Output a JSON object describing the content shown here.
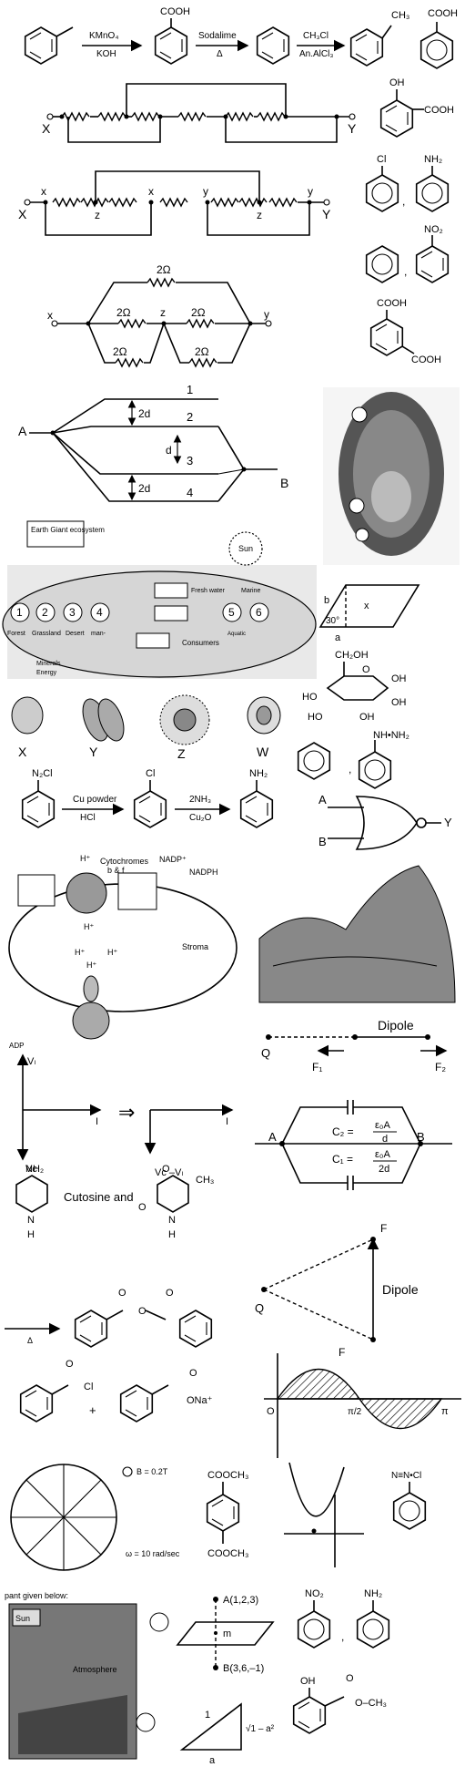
{
  "reactions": {
    "top_reagent_1": "KMnO₄",
    "bottom_reagent_1": "KOH",
    "cooh_label": "COOH",
    "top_reagent_2": "Sodalime",
    "bottom_reagent_2": "Δ",
    "top_reagent_3": "CH₃Cl",
    "bottom_reagent_3": "An.AlCl₃",
    "ch3_label": "CH₃",
    "cooh_label_right": "COOH",
    "diazo_label": "N₂Cl",
    "cu_top": "Cu powder",
    "cu_bottom": "HCl",
    "chloro_label": "Cl",
    "nh3_top": "2NH₃",
    "nh3_bottom": "Cu₂O",
    "amine_label": "NH₂",
    "delta_arrow": "Δ",
    "acid_chloride_cl": "Cl",
    "acid_chloride_o": "O",
    "plus_sign": "+",
    "sodium_salt_o": "O",
    "sodium_salt_ona": "ONa⁺",
    "anhydride_o1": "O",
    "anhydride_o2": "O",
    "anhydride_o3": "O"
  },
  "right_molecules": {
    "salicylic_oh": "OH",
    "salicylic_cooh": "COOH",
    "chloro": "Cl",
    "aniline": "NH₂",
    "comma_1": ",",
    "nitro": "NO₂",
    "comma_2": ",",
    "cooh_top": "COOH",
    "cooh_bottom": "COOH",
    "glucose_ch2oh": "CH₂OH",
    "glucose_o": "O",
    "glucose_oh_1": "OH",
    "glucose_oh_2": "HO",
    "glucose_oh_3": "OH",
    "glucose_ho": "HO",
    "glucose_oh_4": "OH",
    "hydrazine": "NH•NH₂",
    "comma_3": ",",
    "ester_top": "COOCH₃",
    "ester_bottom": "COOCH₃",
    "diazonium": "N≡N•Cl",
    "nitro_2": "NO₂",
    "aniline_2": "NH₂",
    "comma_4": ",",
    "salicylate_oh": "OH",
    "salicylate_o": "O",
    "salicylate_och3": "O–CH₃"
  },
  "circuits": {
    "x_label": "X",
    "y_label": "Y",
    "x_lower": "x",
    "z_lower": "z",
    "y_lower": "y",
    "ohm_2": "2Ω",
    "x2": "x",
    "y2": "y",
    "z2": "z"
  },
  "paths": {
    "a_label": "A",
    "b_label": "B",
    "one": "1",
    "two": "2",
    "three": "3",
    "four": "4",
    "two_d": "2d",
    "d": "d"
  },
  "ecosystem": {
    "earth_giant": "Earth Giant ecosystem",
    "sun": "Sun",
    "fresh_water": "Fresh water",
    "marine": "Marine",
    "aquatic": "Aquatic",
    "consumers": "Consumers",
    "minerals": "Minerals",
    "energy": "Energy",
    "n1": "1",
    "n2": "2",
    "n3": "3",
    "n4": "4",
    "n5": "5",
    "n6": "6",
    "forest": "Forest",
    "grassland": "Grassland",
    "desert": "Desert",
    "man_made": "man-"
  },
  "parallelogram": {
    "b": "b",
    "x": "x",
    "angle": "30°",
    "a": "a"
  },
  "cells": {
    "x": "X",
    "y": "Y",
    "z": "Z",
    "w": "W"
  },
  "gate": {
    "a": "A",
    "b": "B",
    "y": "Y"
  },
  "chloroplast": {
    "h_top": "H⁺",
    "cytochromes": "Cytochromes",
    "bf": "b & f",
    "nadp": "NADP⁺",
    "nadph": "NADPH",
    "h1": "H⁺",
    "h2": "H⁺",
    "h3": "H⁺",
    "h4": "H⁺",
    "stroma": "Stroma",
    "adp": "ADP"
  },
  "dipole_1": {
    "q": "Q",
    "dipole": "Dipole",
    "f1": "F₁",
    "f2": "F₂"
  },
  "phasor": {
    "vl": "Vₗ",
    "i1": "I",
    "vc": "Vᴄ",
    "arrow": "⇒",
    "i2": "I",
    "vc_vl": "Vᴄ –Vₗ"
  },
  "capacitors": {
    "a": "A",
    "b": "B",
    "c2": "C₂ =",
    "c2_num": "ε₀A",
    "c2_den": "d",
    "c1": "C₁ =",
    "c1_num": "ε₀A",
    "c1_den": "2d"
  },
  "bases": {
    "nh2": "NH₂",
    "nh": "N",
    "h1": "H",
    "text": "Cutosine and",
    "o1": "O",
    "o2": "O",
    "ch3": "CH₃",
    "n": "N",
    "h2": "H"
  },
  "dipole_2": {
    "f_top": "F",
    "q": "Q",
    "dipole": "Dipole",
    "f_bottom": "F"
  },
  "sine": {
    "o": "O",
    "pi2": "π/2",
    "pi": "π"
  },
  "wheel": {
    "b": "B = 0.2T",
    "omega": "ω = 10 rad/sec"
  },
  "plane": {
    "a": "A(1,2,3)",
    "m": "m",
    "b": "B(3,6,–1)"
  },
  "triangle": {
    "one": "1",
    "root": "√1 – a²",
    "a": "a"
  },
  "atmosphere": {
    "header": "pant given below:",
    "sun": "Sun",
    "atm": "Atmosphere"
  }
}
